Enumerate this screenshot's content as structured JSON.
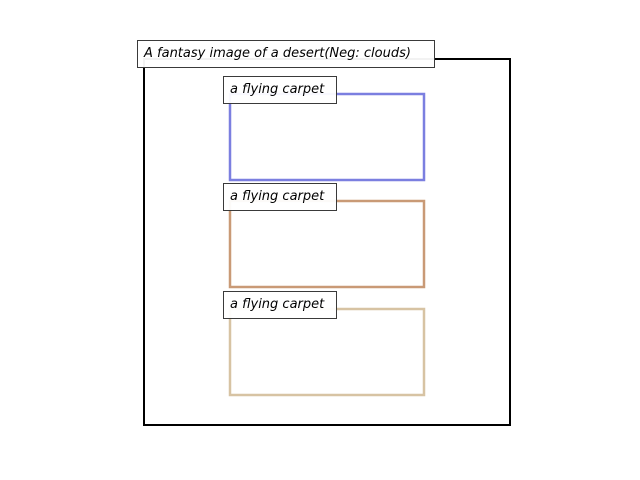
{
  "scene": {
    "caption": "A fantasy image of a desert(Neg: clouds)",
    "frame_color": "#000000",
    "boxes": [
      {
        "label": "a flying carpet",
        "color": "#7b7fe0"
      },
      {
        "label": "a flying carpet",
        "color": "#c99a76"
      },
      {
        "label": "a flying carpet",
        "color": "#d7c3a3"
      }
    ]
  }
}
